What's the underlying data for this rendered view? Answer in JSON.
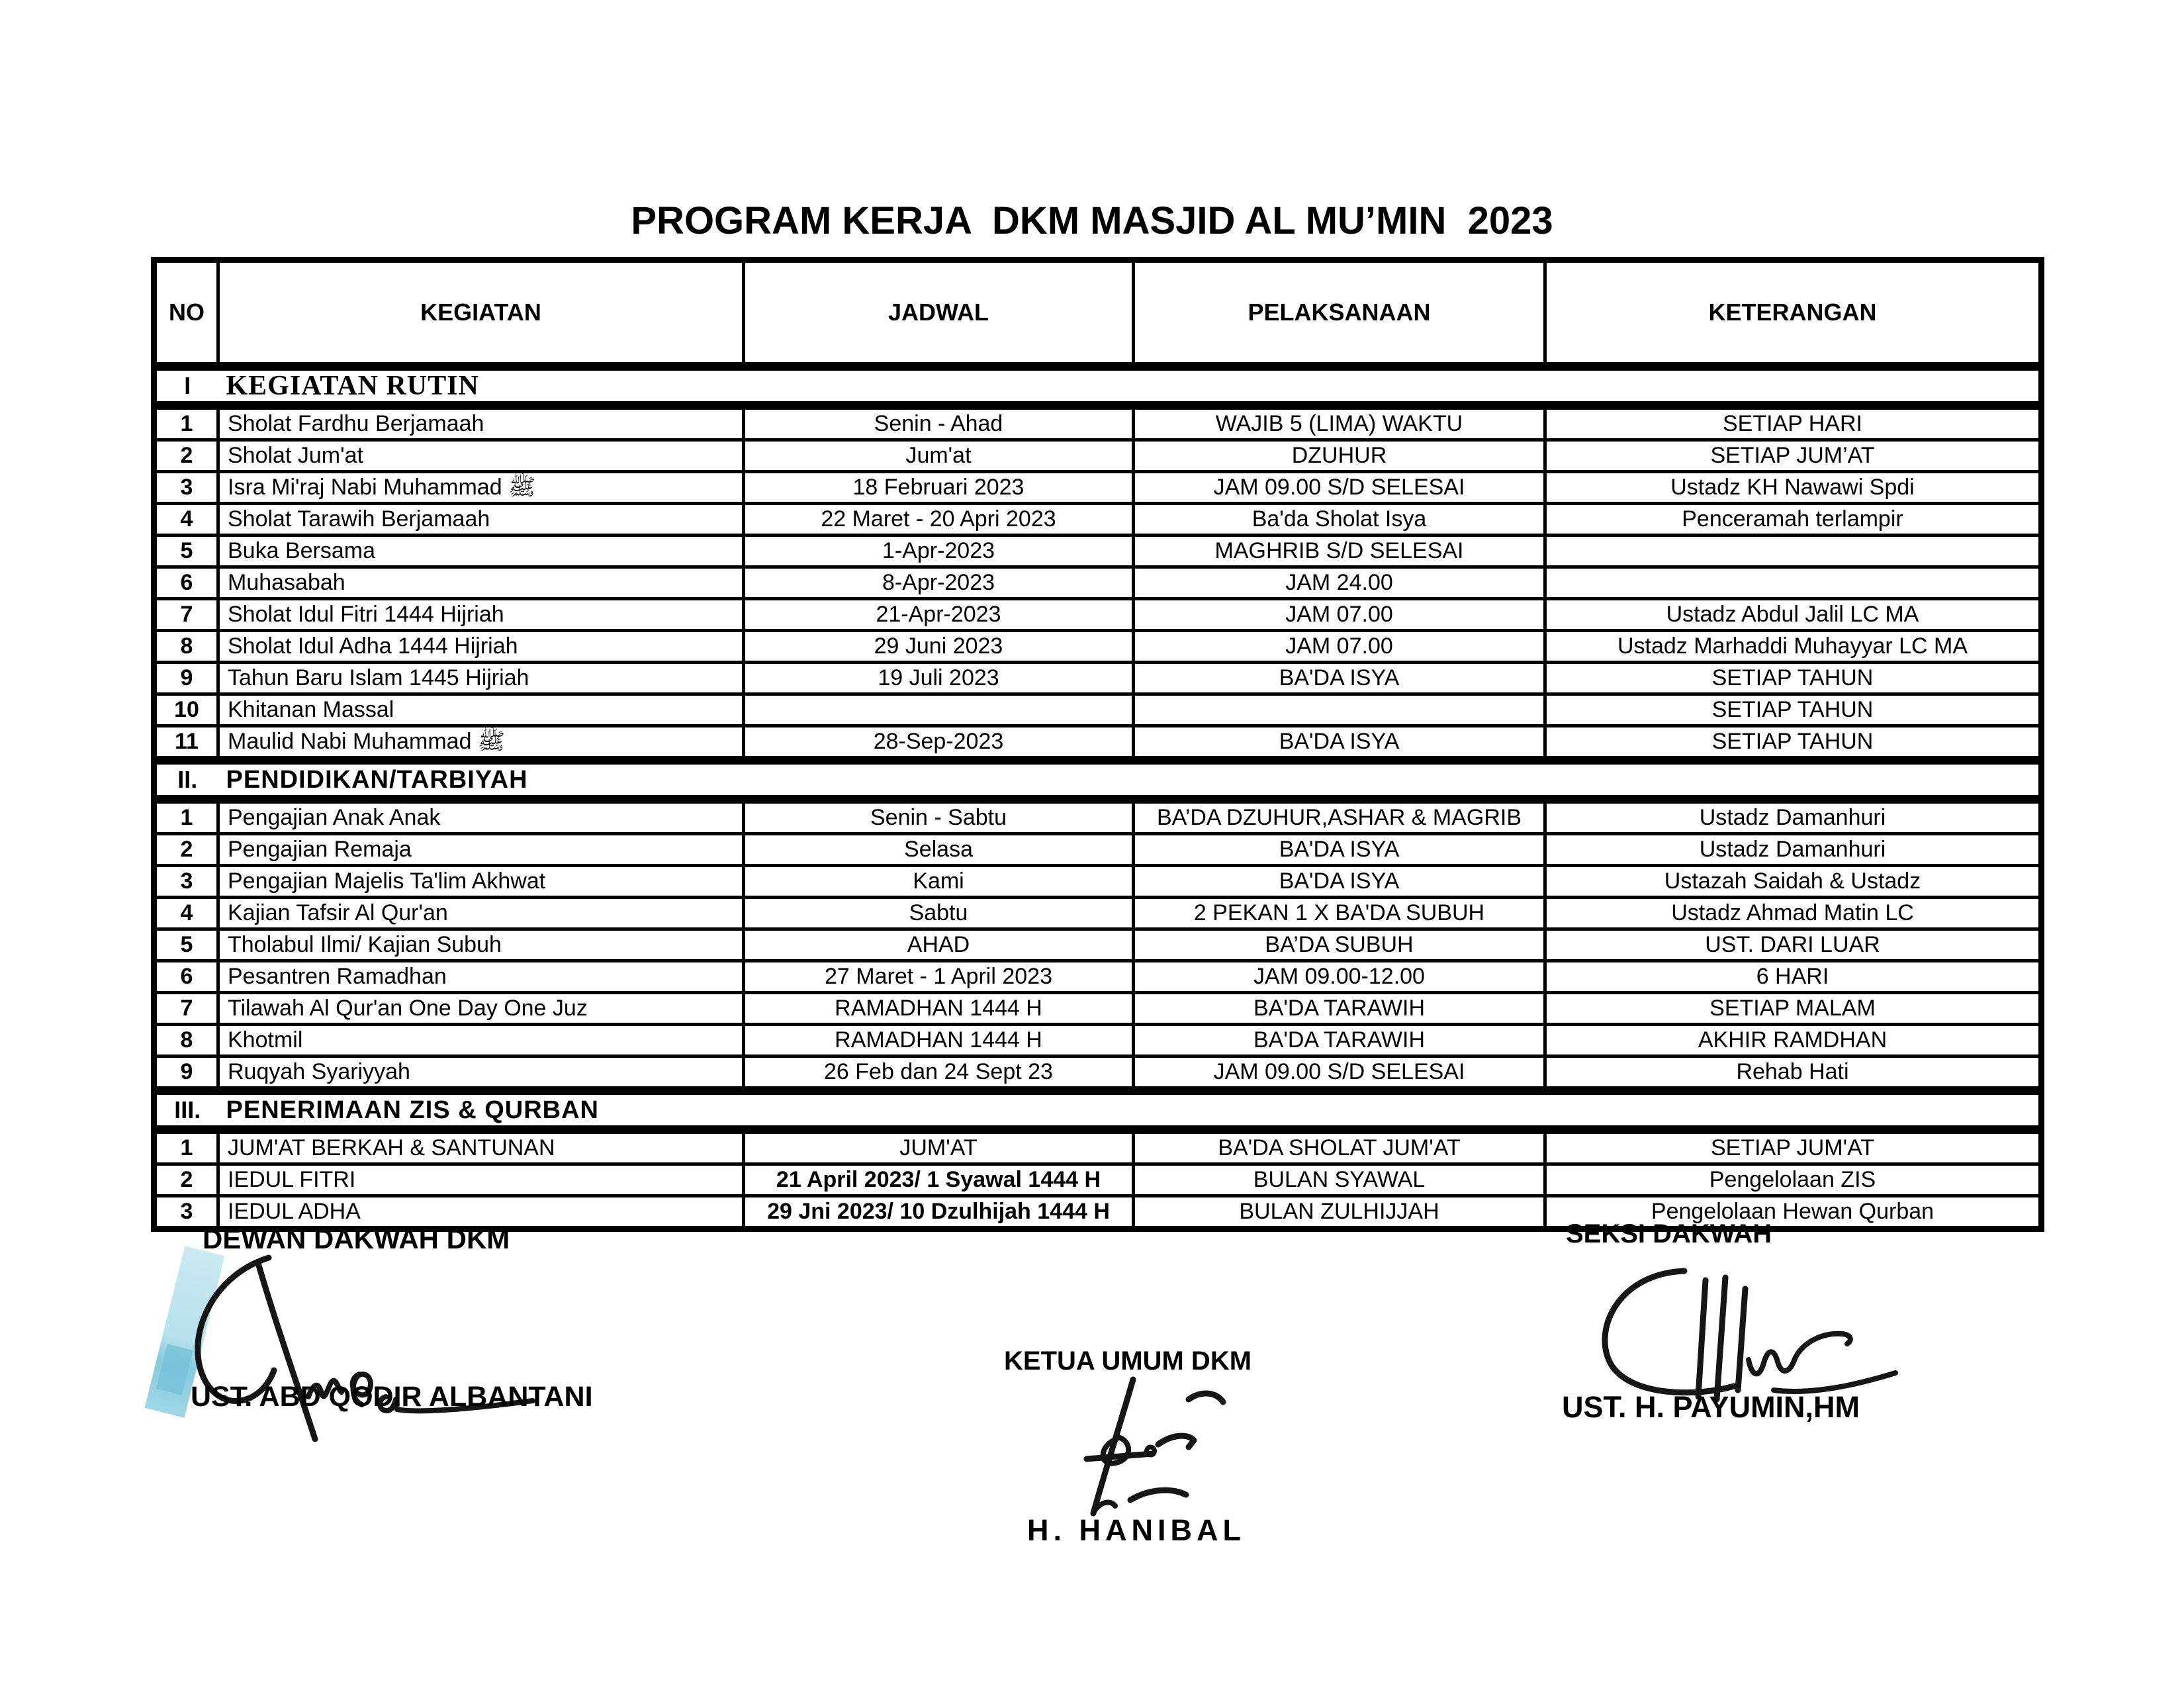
{
  "title": "PROGRAM KERJA  DKM MASJID AL MU’MIN  2023",
  "table": {
    "headers": [
      "NO",
      "KEGIATAN",
      "JADWAL",
      "PELAKSANAAN",
      "KETERANGAN"
    ],
    "sections": [
      {
        "no": "I",
        "title": "KEGIATAN RUTIN",
        "serif": true,
        "rows": [
          {
            "no": "1",
            "kegiatan": "Sholat Fardhu Berjamaah",
            "jadwal": "Senin - Ahad",
            "pelaksanaan": "WAJIB 5 (LIMA) WAKTU",
            "keterangan": "SETIAP HARI"
          },
          {
            "no": "2",
            "kegiatan": "Sholat Jum'at",
            "jadwal": "Jum'at",
            "pelaksanaan": "DZUHUR",
            "keterangan": "SETIAP JUM’AT"
          },
          {
            "no": "3",
            "kegiatan": "Isra Mi'raj Nabi Muhammad ﷺ",
            "jadwal": "18 Februari 2023",
            "pelaksanaan": "JAM 09.00 S/D SELESAI",
            "keterangan": "Ustadz KH Nawawi Spdi"
          },
          {
            "no": "4",
            "kegiatan": "Sholat Tarawih Berjamaah",
            "jadwal": "22 Maret - 20 Apri 2023",
            "pelaksanaan": "Ba'da Sholat Isya",
            "keterangan": "Penceramah terlampir"
          },
          {
            "no": "5",
            "kegiatan": "Buka Bersama",
            "jadwal": "1-Apr-2023",
            "pelaksanaan": "MAGHRIB S/D SELESAI",
            "keterangan": ""
          },
          {
            "no": "6",
            "kegiatan": "Muhasabah",
            "jadwal": "8-Apr-2023",
            "pelaksanaan": "JAM 24.00",
            "keterangan": ""
          },
          {
            "no": "7",
            "kegiatan": "Sholat   Idul Fitri 1444 Hijriah",
            "jadwal": "21-Apr-2023",
            "pelaksanaan": "JAM 07.00",
            "keterangan": "Ustadz   Abdul Jalil LC MA"
          },
          {
            "no": "8",
            "kegiatan": "Sholat   Idul Adha 1444 Hijriah",
            "jadwal": "29 Juni 2023",
            "pelaksanaan": "JAM 07.00",
            "keterangan": "Ustadz Marhaddi Muhayyar LC MA"
          },
          {
            "no": "9",
            "kegiatan": "Tahun Baru Islam 1445 Hijriah",
            "jadwal": "19 Juli 2023",
            "pelaksanaan": "BA'DA ISYA",
            "keterangan": "SETIAP TAHUN"
          },
          {
            "no": "10",
            "kegiatan": "Khitanan Massal",
            "jadwal": "",
            "pelaksanaan": "",
            "keterangan": "SETIAP TAHUN"
          },
          {
            "no": "11",
            "kegiatan": "Maulid Nabi Muhammad ﷺ",
            "jadwal": "28-Sep-2023",
            "pelaksanaan": "BA'DA ISYA",
            "keterangan": "SETIAP TAHUN"
          }
        ]
      },
      {
        "no": "II.",
        "title": "PENDIDIKAN/TARBIYAH",
        "serif": false,
        "rows": [
          {
            "no": "1",
            "kegiatan": "Pengajian Anak Anak",
            "jadwal": "Senin - Sabtu",
            "pelaksanaan": "BA’DA DZUHUR,ASHAR & MAGRIB",
            "keterangan": "Ustadz Damanhuri"
          },
          {
            "no": "2",
            "kegiatan": "Pengajian Remaja",
            "jadwal": "Selasa",
            "pelaksanaan": "BA'DA ISYA",
            "keterangan": "Ustadz Damanhuri"
          },
          {
            "no": "3",
            "kegiatan": "Pengajian Majelis Ta'lim Akhwat",
            "jadwal": "Kami",
            "pelaksanaan": "BA'DA ISYA",
            "keterangan": "Ustazah Saidah & Ustadz"
          },
          {
            "no": "4",
            "kegiatan": "Kajian Tafsir Al Qur'an",
            "jadwal": "Sabtu",
            "pelaksanaan": "2 PEKAN  1 X BA'DA SUBUH",
            "keterangan": "Ustadz Ahmad Matin LC"
          },
          {
            "no": "5",
            "kegiatan": "Tholabul Ilmi/ Kajian Subuh",
            "jadwal": "AHAD",
            "pelaksanaan": "BA’DA SUBUH",
            "keterangan": "UST. DARI LUAR"
          },
          {
            "no": "6",
            "kegiatan": "Pesantren Ramadhan",
            "jadwal": "27 Maret - 1 April 2023",
            "pelaksanaan": "JAM 09.00-12.00",
            "keterangan": "6 HARI"
          },
          {
            "no": "7",
            "kegiatan": "Tilawah Al Qur'an One Day One Juz",
            "jadwal": "RAMADHAN 1444 H",
            "pelaksanaan": "BA'DA TARAWIH",
            "keterangan": "SETIAP MALAM"
          },
          {
            "no": "8",
            "kegiatan": "Khotmil",
            "jadwal": "RAMADHAN 1444 H",
            "pelaksanaan": "BA'DA TARAWIH",
            "keterangan": "AKHIR RAMDHAN"
          },
          {
            "no": "9",
            "kegiatan": "Ruqyah Syariyyah",
            "jadwal": "26 Feb dan 24 Sept 23",
            "pelaksanaan": "JAM 09.00 S/D SELESAI",
            "keterangan": "Rehab Hati"
          }
        ]
      },
      {
        "no": "III.",
        "title": "PENERIMAAN ZIS & QURBAN",
        "serif": false,
        "rows": [
          {
            "no": "1",
            "kegiatan": "JUM'AT BERKAH & SANTUNAN",
            "jadwal": "JUM'AT",
            "pelaksanaan": "BA'DA SHOLAT JUM'AT",
            "keterangan": "SETIAP JUM'AT"
          },
          {
            "no": "2",
            "kegiatan": "IEDUL FITRI",
            "jadwal": "21 April 2023/ 1 Syawal 1444 H",
            "jadwal_bold": true,
            "pelaksanaan": "BULAN SYAWAL",
            "keterangan": "Pengelolaan ZIS"
          },
          {
            "no": "3",
            "kegiatan": "IEDUL ADHA",
            "jadwal": "29 Jni 2023/ 10 Dzulhijah 1444 H",
            "jadwal_bold": true,
            "pelaksanaan": "BULAN ZULHIJJAH",
            "keterangan": "Pengelolaan Hewan Qurban"
          }
        ]
      }
    ]
  },
  "signatures": {
    "left": {
      "title": "DEWAN DAKWAH DKM",
      "name": "UST. ABD QODIR ALBANTANI"
    },
    "center": {
      "title": "KETUA UMUM DKM",
      "name": "H. HANIBAL"
    },
    "right": {
      "title": "SEKSI DAKWAH",
      "name": "UST. H. PAYUMIN,HM"
    }
  }
}
